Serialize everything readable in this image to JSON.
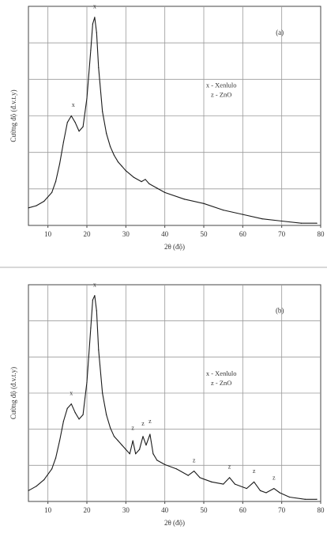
{
  "chart_data": [
    {
      "type": "line",
      "title": "",
      "panel_label": "(a)",
      "xlabel": "2θ (độ)",
      "ylabel": "Cường độ (đ.v.t.y)",
      "xlim": [
        5,
        80
      ],
      "xticks": [
        10,
        20,
        30,
        40,
        50,
        60,
        70,
        80
      ],
      "grid": true,
      "legend_position": "right",
      "legend": [
        "x - Xenlulo",
        "z - ZnO"
      ],
      "y_axis_note": "relative intensity, no numeric ticks",
      "ylim": [
        0,
        100
      ],
      "series": [
        {
          "x": [
            5,
            7,
            9,
            11,
            12,
            13,
            14,
            15,
            16,
            17,
            18,
            19,
            20,
            21,
            21.5,
            22,
            22.5,
            23,
            24,
            25,
            26,
            27,
            28,
            29,
            30,
            32,
            34,
            35,
            36,
            38,
            40,
            45,
            50,
            55,
            60,
            65,
            70,
            75,
            79
          ],
          "y": [
            8,
            9,
            11,
            15,
            20,
            28,
            38,
            47,
            50,
            47,
            43,
            45,
            58,
            80,
            92,
            95,
            88,
            72,
            52,
            42,
            36,
            32,
            29,
            27,
            25,
            22,
            20,
            21,
            19,
            17,
            15,
            12,
            10,
            7,
            5,
            3,
            2,
            1,
            1
          ]
        }
      ],
      "annotations": [
        {
          "text": "x",
          "x": 16.5,
          "y": 53
        },
        {
          "text": "x",
          "x": 22,
          "y": 98
        }
      ]
    },
    {
      "type": "line",
      "title": "",
      "panel_label": "(b)",
      "xlabel": "2θ (độ)",
      "ylabel": "Cường độ (đ.v.t.y)",
      "xlim": [
        5,
        80
      ],
      "xticks": [
        10,
        20,
        30,
        40,
        50,
        60,
        70,
        80
      ],
      "grid": true,
      "legend_position": "right",
      "legend": [
        "x - Xenlulo",
        "z - ZnO"
      ],
      "y_axis_note": "relative intensity, no numeric ticks",
      "ylim": [
        0,
        100
      ],
      "series": [
        {
          "x": [
            5,
            7,
            9,
            11,
            12,
            13,
            14,
            15,
            16,
            17,
            18,
            19,
            20,
            21,
            21.5,
            22,
            22.5,
            23,
            24,
            25,
            26,
            27,
            28,
            29,
            30,
            31,
            31.8,
            32.5,
            33.5,
            34.4,
            35.2,
            36.2,
            37,
            38,
            40,
            43,
            46,
            47.5,
            49,
            52,
            55,
            56.6,
            58,
            61,
            62.9,
            64.5,
            66,
            68,
            69.5,
            72,
            76,
            79
          ],
          "y": [
            5,
            7,
            10,
            15,
            20,
            28,
            37,
            43,
            45,
            41,
            38,
            40,
            55,
            80,
            93,
            95,
            88,
            70,
            50,
            40,
            34,
            30,
            28,
            26,
            24,
            22,
            28,
            22,
            24,
            30,
            26,
            31,
            22,
            19,
            17,
            15,
            12,
            14,
            11,
            9,
            8,
            11,
            8,
            6,
            9,
            5,
            4,
            6,
            4,
            2,
            1,
            1
          ]
        }
      ],
      "annotations": [
        {
          "text": "x",
          "x": 16,
          "y": 48
        },
        {
          "text": "x",
          "x": 22,
          "y": 98
        },
        {
          "text": "z",
          "x": 31.8,
          "y": 32
        },
        {
          "text": "z",
          "x": 34.4,
          "y": 34
        },
        {
          "text": "z",
          "x": 36.2,
          "y": 35
        },
        {
          "text": "z",
          "x": 47.5,
          "y": 17
        },
        {
          "text": "z",
          "x": 56.6,
          "y": 14
        },
        {
          "text": "z",
          "x": 62.9,
          "y": 12
        },
        {
          "text": "z",
          "x": 68,
          "y": 9
        }
      ]
    }
  ]
}
